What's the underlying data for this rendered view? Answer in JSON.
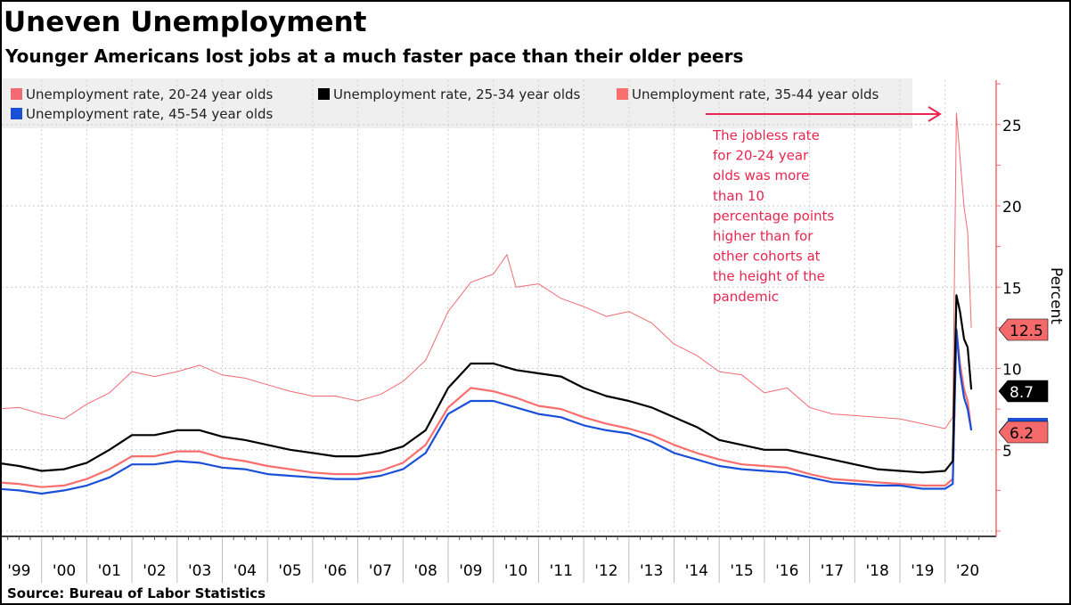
{
  "chart_data": {
    "type": "line",
    "title": "Uneven Unemployment",
    "subtitle": "Younger Americans lost jobs at a much faster pace than their older peers",
    "ylabel": "Percent",
    "ylim": [
      0,
      28
    ],
    "yticks": [
      5,
      10,
      15,
      20,
      25
    ],
    "xlim": [
      1999,
      2021
    ],
    "xtick_labels": [
      "'99",
      "'00",
      "'01",
      "'02",
      "'03",
      "'04",
      "'05",
      "'06",
      "'07",
      "'08",
      "'09",
      "'10",
      "'11",
      "'12",
      "'13",
      "'14",
      "'15",
      "'16",
      "'17",
      "'18",
      "'19",
      "'20"
    ],
    "grid": true,
    "legend_placement": "top-left",
    "source": "Source: Bureau of Labor Statistics",
    "annotation": [
      "The jobless rate",
      "for 20-24 year",
      "olds was more",
      "than 10",
      "percentage points",
      "higher than for",
      "other cohorts at",
      "the height of the",
      "pandemic"
    ],
    "series": [
      {
        "name": "Unemployment rate, 20-24 year olds",
        "color": "#f26b74",
        "last_label": "12.5",
        "points": [
          [
            1999,
            7.5
          ],
          [
            1999.5,
            7.6
          ],
          [
            2000,
            7.2
          ],
          [
            2000.5,
            6.9
          ],
          [
            2001,
            7.8
          ],
          [
            2001.5,
            8.5
          ],
          [
            2002,
            9.8
          ],
          [
            2002.5,
            9.5
          ],
          [
            2003,
            9.8
          ],
          [
            2003.5,
            10.2
          ],
          [
            2004,
            9.6
          ],
          [
            2004.5,
            9.4
          ],
          [
            2005,
            9.0
          ],
          [
            2005.5,
            8.6
          ],
          [
            2006,
            8.3
          ],
          [
            2006.5,
            8.3
          ],
          [
            2007,
            8.0
          ],
          [
            2007.5,
            8.4
          ],
          [
            2008,
            9.2
          ],
          [
            2008.5,
            10.5
          ],
          [
            2009,
            13.5
          ],
          [
            2009.5,
            15.3
          ],
          [
            2010,
            15.8
          ],
          [
            2010.3,
            17.0
          ],
          [
            2010.5,
            15.0
          ],
          [
            2011,
            15.2
          ],
          [
            2011.5,
            14.3
          ],
          [
            2012,
            13.8
          ],
          [
            2012.5,
            13.2
          ],
          [
            2013,
            13.5
          ],
          [
            2013.5,
            12.8
          ],
          [
            2014,
            11.5
          ],
          [
            2014.5,
            10.8
          ],
          [
            2015,
            9.8
          ],
          [
            2015.5,
            9.6
          ],
          [
            2016,
            8.5
          ],
          [
            2016.5,
            8.8
          ],
          [
            2017,
            7.6
          ],
          [
            2017.5,
            7.2
          ],
          [
            2018,
            7.1
          ],
          [
            2018.5,
            7.0
          ],
          [
            2019,
            6.9
          ],
          [
            2019.5,
            6.6
          ],
          [
            2020,
            6.3
          ],
          [
            2020.17,
            7.0
          ],
          [
            2020.25,
            25.7
          ],
          [
            2020.42,
            19.9
          ],
          [
            2020.5,
            18.4
          ],
          [
            2020.58,
            12.5
          ]
        ]
      },
      {
        "name": "Unemployment rate, 25-34 year olds",
        "color": "#000000",
        "last_label": "8.7",
        "points": [
          [
            1999,
            4.2
          ],
          [
            1999.5,
            4.0
          ],
          [
            2000,
            3.7
          ],
          [
            2000.5,
            3.8
          ],
          [
            2001,
            4.2
          ],
          [
            2001.5,
            5.0
          ],
          [
            2002,
            5.9
          ],
          [
            2002.5,
            5.9
          ],
          [
            2003,
            6.2
          ],
          [
            2003.5,
            6.2
          ],
          [
            2004,
            5.8
          ],
          [
            2004.5,
            5.6
          ],
          [
            2005,
            5.3
          ],
          [
            2005.5,
            5.0
          ],
          [
            2006,
            4.8
          ],
          [
            2006.5,
            4.6
          ],
          [
            2007,
            4.6
          ],
          [
            2007.5,
            4.8
          ],
          [
            2008,
            5.2
          ],
          [
            2008.5,
            6.2
          ],
          [
            2009,
            8.8
          ],
          [
            2009.5,
            10.3
          ],
          [
            2010,
            10.3
          ],
          [
            2010.5,
            9.9
          ],
          [
            2011,
            9.7
          ],
          [
            2011.5,
            9.5
          ],
          [
            2012,
            8.8
          ],
          [
            2012.5,
            8.3
          ],
          [
            2013,
            8.0
          ],
          [
            2013.5,
            7.6
          ],
          [
            2014,
            7.0
          ],
          [
            2014.5,
            6.4
          ],
          [
            2015,
            5.6
          ],
          [
            2015.5,
            5.3
          ],
          [
            2016,
            5.0
          ],
          [
            2016.5,
            5.0
          ],
          [
            2017,
            4.7
          ],
          [
            2017.5,
            4.4
          ],
          [
            2018,
            4.1
          ],
          [
            2018.5,
            3.8
          ],
          [
            2019,
            3.7
          ],
          [
            2019.5,
            3.6
          ],
          [
            2020,
            3.7
          ],
          [
            2020.17,
            4.3
          ],
          [
            2020.25,
            14.5
          ],
          [
            2020.33,
            13.5
          ],
          [
            2020.42,
            11.8
          ],
          [
            2020.5,
            11.3
          ],
          [
            2020.58,
            8.7
          ]
        ]
      },
      {
        "name": "Unemployment rate, 35-44 year olds",
        "color": "#fa6e6e",
        "last_label": "6.2",
        "points": [
          [
            1999,
            3.0
          ],
          [
            1999.5,
            2.9
          ],
          [
            2000,
            2.7
          ],
          [
            2000.5,
            2.8
          ],
          [
            2001,
            3.2
          ],
          [
            2001.5,
            3.8
          ],
          [
            2002,
            4.6
          ],
          [
            2002.5,
            4.6
          ],
          [
            2003,
            4.9
          ],
          [
            2003.5,
            4.9
          ],
          [
            2004,
            4.5
          ],
          [
            2004.5,
            4.3
          ],
          [
            2005,
            4.0
          ],
          [
            2005.5,
            3.8
          ],
          [
            2006,
            3.6
          ],
          [
            2006.5,
            3.5
          ],
          [
            2007,
            3.5
          ],
          [
            2007.5,
            3.7
          ],
          [
            2008,
            4.2
          ],
          [
            2008.5,
            5.3
          ],
          [
            2009,
            7.6
          ],
          [
            2009.5,
            8.8
          ],
          [
            2010,
            8.6
          ],
          [
            2010.5,
            8.2
          ],
          [
            2011,
            7.7
          ],
          [
            2011.5,
            7.5
          ],
          [
            2012,
            7.0
          ],
          [
            2012.5,
            6.6
          ],
          [
            2013,
            6.3
          ],
          [
            2013.5,
            5.9
          ],
          [
            2014,
            5.3
          ],
          [
            2014.5,
            4.8
          ],
          [
            2015,
            4.4
          ],
          [
            2015.5,
            4.1
          ],
          [
            2016,
            4.0
          ],
          [
            2016.5,
            3.9
          ],
          [
            2017,
            3.5
          ],
          [
            2017.5,
            3.2
          ],
          [
            2018,
            3.1
          ],
          [
            2018.5,
            3.0
          ],
          [
            2019,
            2.9
          ],
          [
            2019.5,
            2.8
          ],
          [
            2020,
            2.8
          ],
          [
            2020.17,
            3.2
          ],
          [
            2020.25,
            12.4
          ],
          [
            2020.33,
            10.3
          ],
          [
            2020.42,
            8.7
          ],
          [
            2020.5,
            8.0
          ],
          [
            2020.58,
            6.2
          ]
        ]
      },
      {
        "name": "Unemployment rate, 45-54 year olds",
        "color": "#1a4fd8",
        "last_label": "6.2",
        "points": [
          [
            1999,
            2.6
          ],
          [
            1999.5,
            2.5
          ],
          [
            2000,
            2.3
          ],
          [
            2000.5,
            2.5
          ],
          [
            2001,
            2.8
          ],
          [
            2001.5,
            3.3
          ],
          [
            2002,
            4.1
          ],
          [
            2002.5,
            4.1
          ],
          [
            2003,
            4.3
          ],
          [
            2003.5,
            4.2
          ],
          [
            2004,
            3.9
          ],
          [
            2004.5,
            3.8
          ],
          [
            2005,
            3.5
          ],
          [
            2005.5,
            3.4
          ],
          [
            2006,
            3.3
          ],
          [
            2006.5,
            3.2
          ],
          [
            2007,
            3.2
          ],
          [
            2007.5,
            3.4
          ],
          [
            2008,
            3.8
          ],
          [
            2008.5,
            4.8
          ],
          [
            2009,
            7.2
          ],
          [
            2009.5,
            8.0
          ],
          [
            2010,
            8.0
          ],
          [
            2010.5,
            7.6
          ],
          [
            2011,
            7.2
          ],
          [
            2011.5,
            7.0
          ],
          [
            2012,
            6.5
          ],
          [
            2012.5,
            6.2
          ],
          [
            2013,
            6.0
          ],
          [
            2013.5,
            5.5
          ],
          [
            2014,
            4.8
          ],
          [
            2014.5,
            4.4
          ],
          [
            2015,
            4.0
          ],
          [
            2015.5,
            3.8
          ],
          [
            2016,
            3.7
          ],
          [
            2016.5,
            3.6
          ],
          [
            2017,
            3.3
          ],
          [
            2017.5,
            3.0
          ],
          [
            2018,
            2.9
          ],
          [
            2018.5,
            2.8
          ],
          [
            2019,
            2.8
          ],
          [
            2019.5,
            2.6
          ],
          [
            2020,
            2.6
          ],
          [
            2020.17,
            2.9
          ],
          [
            2020.25,
            12.4
          ],
          [
            2020.33,
            9.8
          ],
          [
            2020.42,
            8.2
          ],
          [
            2020.5,
            7.5
          ],
          [
            2020.58,
            6.2
          ]
        ]
      }
    ],
    "axis_color": "#f46a6a",
    "annotation_color": "#e8264f"
  }
}
